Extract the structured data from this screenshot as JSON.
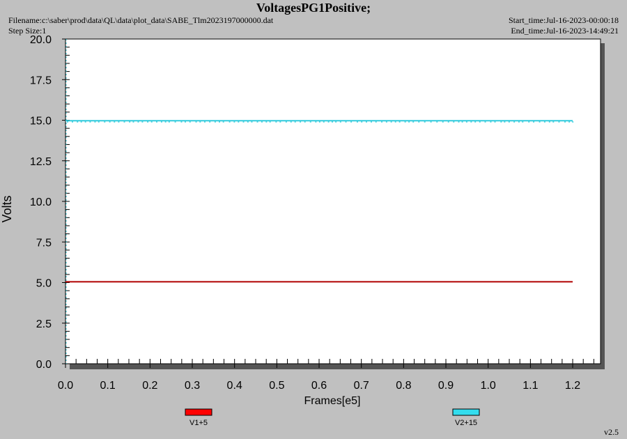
{
  "header": {
    "title": "VoltagesPG1Positive;",
    "filename": "Filename:c:\\saber\\prod\\data\\QL\\data\\plot_data\\SABE_Tlm2023197000000.dat",
    "step_size": "Step Size:1",
    "start_time": "Start_time:Jul-16-2023-00:00:18",
    "end_time": "End_time:Jul-16-2023-14:49:21"
  },
  "footer": {
    "version": "v2.5"
  },
  "chart_data": {
    "type": "line",
    "title": "VoltagesPG1Positive;",
    "xlabel": "Frames[e5]",
    "ylabel": "Volts",
    "xlim": [
      0.0,
      1.25
    ],
    "ylim": [
      0.0,
      20.0
    ],
    "xticks": [
      "0.0",
      "0.1",
      "0.2",
      "0.3",
      "0.4",
      "0.5",
      "0.6",
      "0.7",
      "0.8",
      "0.9",
      "1.0",
      "1.1",
      "1.2"
    ],
    "yticks": [
      "0.0",
      "2.5",
      "5.0",
      "7.5",
      "10.0",
      "12.5",
      "15.0",
      "17.5",
      "20.0"
    ],
    "grid": false,
    "legend_position": "bottom",
    "series": [
      {
        "name": "V1+5",
        "color": "#ff0000",
        "line_color": "#b00000",
        "x": [
          0.0,
          1.2
        ],
        "y": [
          5.05,
          5.05
        ]
      },
      {
        "name": "V2+15",
        "color": "#33ddee",
        "line_color": "#33ccdd",
        "x": [
          0.0,
          1.2
        ],
        "y": [
          14.97,
          14.97
        ]
      }
    ]
  }
}
